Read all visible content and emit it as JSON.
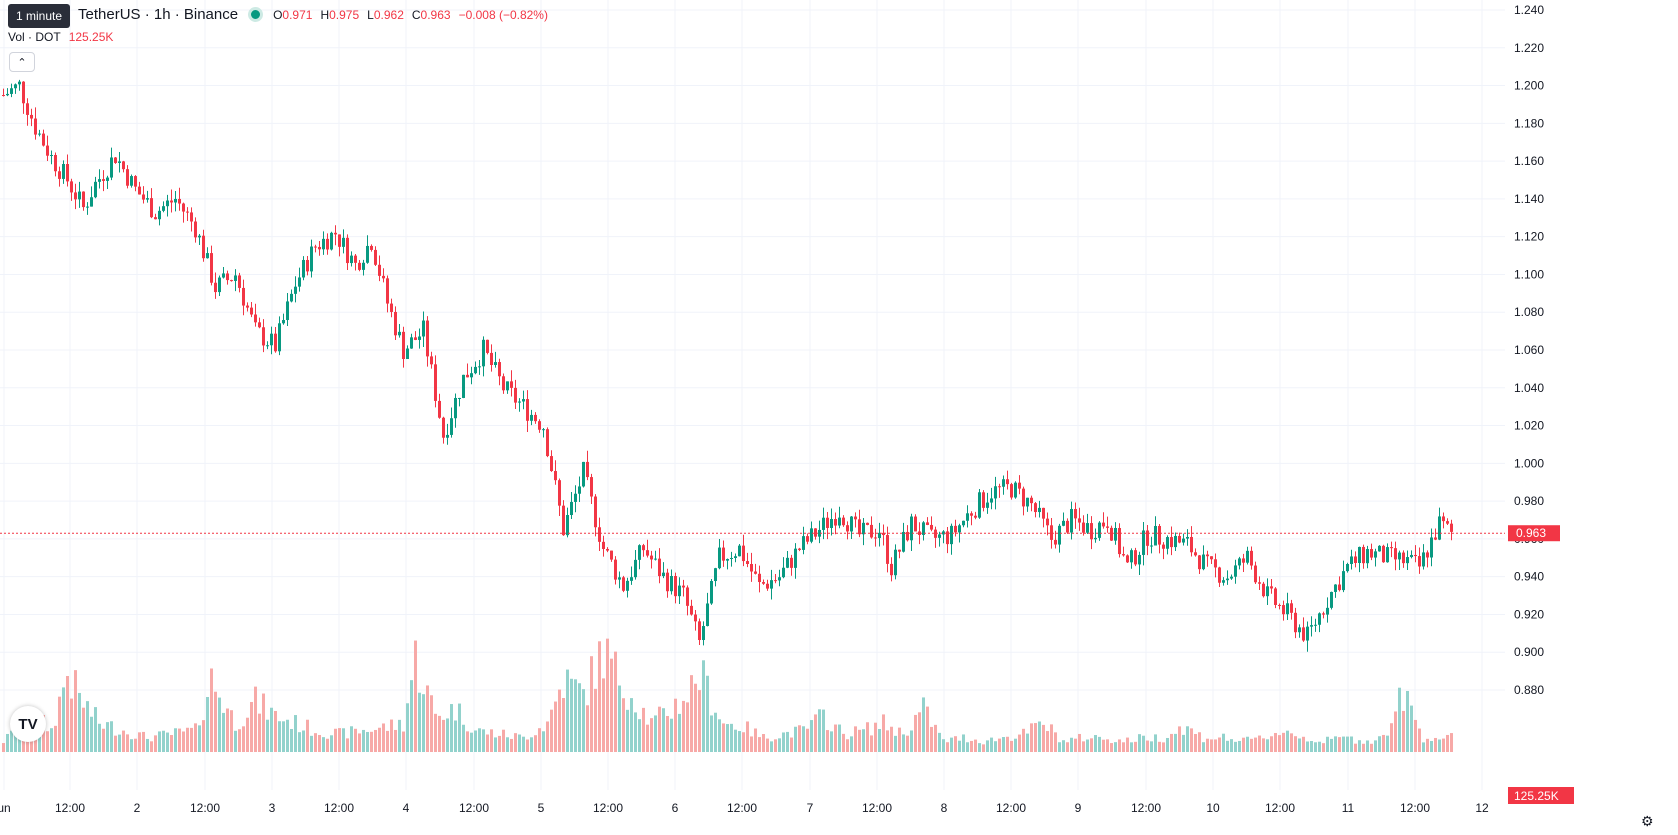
{
  "legend": {
    "tooltip": "1 minute",
    "symbol": "TetherUS · 1h · Binance",
    "ohlc": [
      {
        "k": "O",
        "v": "0.971"
      },
      {
        "k": "H",
        "v": "0.975"
      },
      {
        "k": "L",
        "v": "0.962"
      },
      {
        "k": "C",
        "v": "0.963"
      },
      {
        "k": "",
        "v": "−0.008 (−0.82%)"
      }
    ],
    "volume_label": "Vol · DOT",
    "volume_value": "125.25K"
  },
  "colors": {
    "up": "#089981",
    "down": "#f23645",
    "up_vol": "#92d2cc",
    "down_vol": "#f7a9a7",
    "grid": "#f0f3fa"
  },
  "icons": {
    "collapse": "chevron-up-icon",
    "logo": "tradingview-logo-icon",
    "settings": "gear-icon"
  },
  "chart_data": {
    "type": "candlestick",
    "y_axis": {
      "min": 0.86,
      "max": 1.25,
      "ticks": [
        "1.240",
        "1.220",
        "1.200",
        "1.180",
        "1.160",
        "1.140",
        "1.120",
        "1.100",
        "1.080",
        "1.060",
        "1.040",
        "1.020",
        "1.000",
        "0.980",
        "0.960",
        "0.940",
        "0.920",
        "0.900",
        "0.880"
      ]
    },
    "x_axis": {
      "labels": [
        "un",
        "12:00",
        "2",
        "12:00",
        "3",
        "12:00",
        "4",
        "12:00",
        "5",
        "12:00",
        "6",
        "12:00",
        "7",
        "12:00",
        "8",
        "12:00",
        "9",
        "12:00",
        "10",
        "12:00",
        "11",
        "12:00",
        "12"
      ]
    },
    "last_price": "0.963",
    "last_volume": "125.25K",
    "close_path": [
      [
        0,
        1.195
      ],
      [
        4,
        1.2
      ],
      [
        8,
        1.178
      ],
      [
        12,
        1.162
      ],
      [
        16,
        1.15
      ],
      [
        20,
        1.135
      ],
      [
        23,
        1.148
      ],
      [
        28,
        1.163
      ],
      [
        33,
        1.145
      ],
      [
        38,
        1.133
      ],
      [
        43,
        1.14
      ],
      [
        48,
        1.125
      ],
      [
        53,
        1.093
      ],
      [
        58,
        1.1
      ],
      [
        63,
        1.07
      ],
      [
        68,
        1.062
      ],
      [
        73,
        1.095
      ],
      [
        78,
        1.115
      ],
      [
        83,
        1.122
      ],
      [
        88,
        1.105
      ],
      [
        92,
        1.118
      ],
      [
        96,
        1.085
      ],
      [
        100,
        1.06
      ],
      [
        105,
        1.07
      ],
      [
        110,
        1.015
      ],
      [
        115,
        1.045
      ],
      [
        120,
        1.06
      ],
      [
        125,
        1.04
      ],
      [
        130,
        1.03
      ],
      [
        135,
        1.02
      ],
      [
        140,
        0.965
      ],
      [
        145,
        0.995
      ],
      [
        150,
        0.955
      ],
      [
        155,
        0.935
      ],
      [
        160,
        0.955
      ],
      [
        165,
        0.94
      ],
      [
        170,
        0.93
      ],
      [
        174,
        0.905
      ],
      [
        179,
        0.95
      ],
      [
        184,
        0.955
      ],
      [
        189,
        0.935
      ],
      [
        194,
        0.94
      ],
      [
        199,
        0.955
      ],
      [
        204,
        0.965
      ],
      [
        209,
        0.975
      ],
      [
        214,
        0.962
      ],
      [
        219,
        0.965
      ],
      [
        222,
        0.945
      ],
      [
        227,
        0.968
      ],
      [
        232,
        0.96
      ],
      [
        237,
        0.962
      ],
      [
        242,
        0.975
      ],
      [
        247,
        0.985
      ],
      [
        252,
        0.987
      ],
      [
        257,
        0.978
      ],
      [
        262,
        0.96
      ],
      [
        267,
        0.97
      ],
      [
        272,
        0.965
      ],
      [
        276,
        0.97
      ],
      [
        281,
        0.945
      ],
      [
        286,
        0.962
      ],
      [
        291,
        0.96
      ],
      [
        296,
        0.957
      ],
      [
        301,
        0.945
      ],
      [
        306,
        0.94
      ],
      [
        311,
        0.95
      ],
      [
        316,
        0.93
      ],
      [
        321,
        0.92
      ],
      [
        326,
        0.908
      ],
      [
        331,
        0.928
      ],
      [
        336,
        0.945
      ],
      [
        341,
        0.953
      ],
      [
        346,
        0.95
      ],
      [
        351,
        0.948
      ],
      [
        354,
        0.945
      ],
      [
        359,
        0.968
      ],
      [
        362,
        0.963
      ]
    ],
    "volume_path": [
      [
        0,
        15
      ],
      [
        5,
        40
      ],
      [
        8,
        50
      ],
      [
        12,
        30
      ],
      [
        16,
        110
      ],
      [
        19,
        75
      ],
      [
        24,
        40
      ],
      [
        30,
        30
      ],
      [
        36,
        20
      ],
      [
        42,
        25
      ],
      [
        48,
        30
      ],
      [
        52,
        100
      ],
      [
        58,
        40
      ],
      [
        63,
        70
      ],
      [
        68,
        50
      ],
      [
        73,
        40
      ],
      [
        78,
        30
      ],
      [
        84,
        25
      ],
      [
        90,
        30
      ],
      [
        96,
        35
      ],
      [
        100,
        40
      ],
      [
        103,
        130
      ],
      [
        108,
        50
      ],
      [
        113,
        60
      ],
      [
        118,
        30
      ],
      [
        124,
        25
      ],
      [
        130,
        20
      ],
      [
        136,
        40
      ],
      [
        140,
        100
      ],
      [
        145,
        80
      ],
      [
        150,
        140
      ],
      [
        153,
        110
      ],
      [
        157,
        80
      ],
      [
        162,
        40
      ],
      [
        167,
        60
      ],
      [
        171,
        80
      ],
      [
        174,
        110
      ],
      [
        180,
        40
      ],
      [
        185,
        35
      ],
      [
        190,
        20
      ],
      [
        195,
        25
      ],
      [
        200,
        30
      ],
      [
        205,
        50
      ],
      [
        210,
        25
      ],
      [
        215,
        30
      ],
      [
        220,
        40
      ],
      [
        225,
        25
      ],
      [
        230,
        60
      ],
      [
        235,
        15
      ],
      [
        240,
        20
      ],
      [
        245,
        15
      ],
      [
        250,
        20
      ],
      [
        255,
        25
      ],
      [
        260,
        40
      ],
      [
        265,
        15
      ],
      [
        270,
        20
      ],
      [
        275,
        20
      ],
      [
        280,
        15
      ],
      [
        285,
        20
      ],
      [
        290,
        20
      ],
      [
        295,
        35
      ],
      [
        300,
        20
      ],
      [
        305,
        20
      ],
      [
        310,
        15
      ],
      [
        315,
        20
      ],
      [
        320,
        30
      ],
      [
        325,
        20
      ],
      [
        330,
        15
      ],
      [
        335,
        20
      ],
      [
        340,
        15
      ],
      [
        345,
        20
      ],
      [
        350,
        80
      ],
      [
        355,
        20
      ],
      [
        359,
        20
      ]
    ]
  }
}
